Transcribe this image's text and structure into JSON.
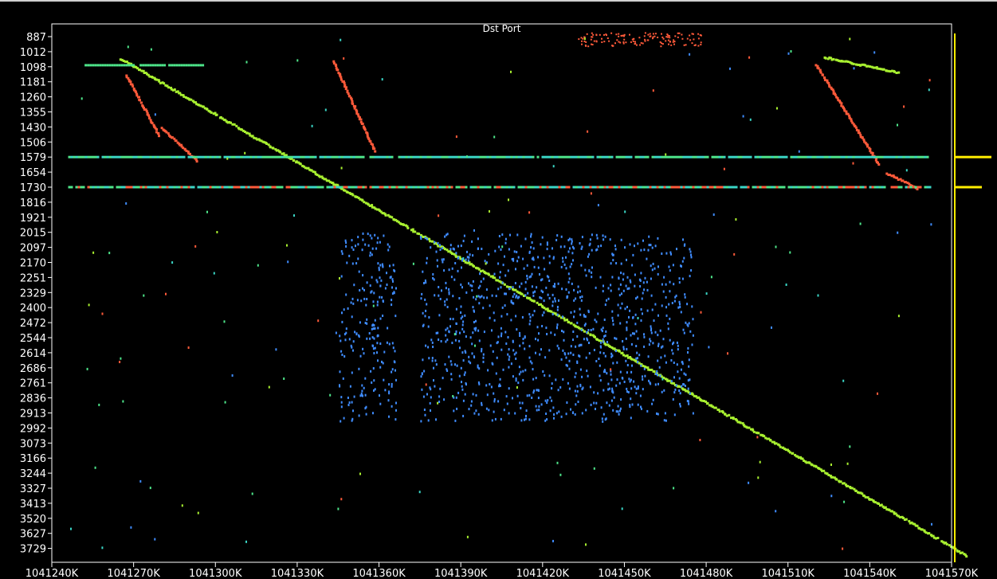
{
  "chart_data": {
    "type": "scatter",
    "title": "Dst Port",
    "y_ticks": [
      "887",
      "1012",
      "1098",
      "1181",
      "1260",
      "1355",
      "1430",
      "1506",
      "1579",
      "1654",
      "1730",
      "1816",
      "1921",
      "2015",
      "2097",
      "2170",
      "2251",
      "2329",
      "2400",
      "2472",
      "2544",
      "2614",
      "2686",
      "2761",
      "2836",
      "2913",
      "2992",
      "3073",
      "3166",
      "3244",
      "3327",
      "3413",
      "3520",
      "3627",
      "3729"
    ],
    "x_ticks": [
      "1041240K",
      "1041270K",
      "1041300K",
      "1041330K",
      "1041360K",
      "1041390K",
      "1041420K",
      "1041450K",
      "1041480K",
      "1041510K",
      "1041540K",
      "1041570K"
    ],
    "xlim": [
      1041240,
      1041570
    ],
    "x_unit": "K",
    "y_axis": "categorical (port index)",
    "grid": false,
    "colors": {
      "background": "#000000",
      "axis": "#ffffff",
      "main_scan": "#a8f030",
      "reverse_scan": "#ff5a3a",
      "cluster": "#3f8cff",
      "band_cyan": "#3ad6c6",
      "band_green": "#4ee68a",
      "side_marker": "#ffee00"
    },
    "series": [
      {
        "kind": "main-scan",
        "color_key": "main_scan",
        "segments": [
          {
            "x": [
              1041265,
              1041575
            ],
            "y_index": [
              1.4,
              34.4
            ]
          }
        ]
      },
      {
        "kind": "reverse-scan",
        "color_key": "reverse_scan",
        "segments": [
          {
            "x": [
              1041267,
              1041279
            ],
            "y_index": [
              2.5,
              6.5
            ]
          },
          {
            "x": [
              1041280,
              1041293
            ],
            "y_index": [
              6.0,
              8.2
            ]
          },
          {
            "x": [
              1041343,
              1041358
            ],
            "y_index": [
              1.6,
              7.5
            ]
          },
          {
            "x": [
              1041520,
              1041543
            ],
            "y_index": [
              1.8,
              8.4
            ]
          },
          {
            "x": [
              1041546,
              1041557
            ],
            "y_index": [
              9.0,
              10.0
            ]
          }
        ]
      },
      {
        "kind": "reverse-scan-top",
        "color_key": "main_scan",
        "segments": [
          {
            "x": [
              1041523,
              1041550
            ],
            "y_index": [
              1.3,
              2.3
            ]
          }
        ]
      },
      {
        "kind": "port-bands",
        "bands": [
          {
            "y_index": 8.0,
            "x": [
              1041246,
              1041561
            ],
            "color_keys": [
              "band_cyan",
              "band_green"
            ]
          },
          {
            "y_index": 10.0,
            "x": [
              1041246,
              1041562
            ],
            "color_keys": [
              "band_cyan",
              "band_green",
              "reverse_scan"
            ]
          },
          {
            "y_index": 1.9,
            "x": [
              1041252,
              1041295
            ],
            "color_keys": [
              "band_green"
            ]
          }
        ]
      },
      {
        "kind": "cluster",
        "color_key": "cluster",
        "regions": [
          {
            "x": [
              1041345,
              1041366
            ],
            "y_index": [
              13.0,
              25.5
            ]
          },
          {
            "x": [
              1041375,
              1041475
            ],
            "y_index": [
              13.0,
              25.5
            ]
          }
        ]
      },
      {
        "kind": "top-cluster",
        "color_key": "reverse_scan",
        "regions": [
          {
            "x": [
              1041433,
              1041478
            ],
            "y_index": [
              -0.3,
              0.6
            ]
          }
        ]
      }
    ],
    "side_markers": [
      {
        "y_index": 8.0
      },
      {
        "y_index": 10.0
      }
    ]
  }
}
